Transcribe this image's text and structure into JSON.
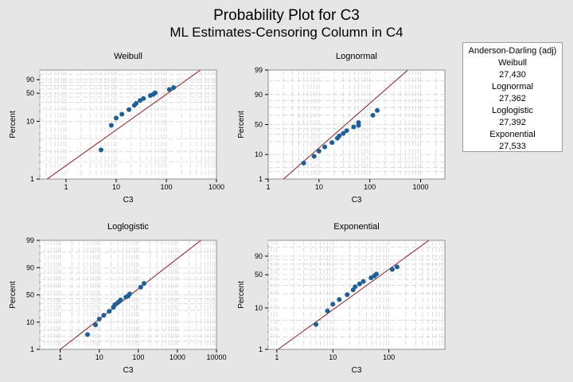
{
  "figure": {
    "title": "Probability Plot for C3",
    "subtitle": "ML Estimates-Censoring Column in C4"
  },
  "legend": {
    "header": "Anderson-Darling (adj)",
    "entries": [
      {
        "name": "Weibull",
        "value": "27,430"
      },
      {
        "name": "Lognormal",
        "value": "27,362"
      },
      {
        "name": "Loglogistic",
        "value": "27,392"
      },
      {
        "name": "Exponential",
        "value": "27,533"
      }
    ]
  },
  "colors": {
    "background": "#e6e6e6",
    "plot_area": "#ffffff",
    "points": "#1f5f99",
    "fit_line": "#8b1a1a",
    "grid": "#d4d4d4"
  },
  "chart_data": [
    {
      "type": "scatter",
      "title": "Weibull",
      "xlabel": "C3",
      "ylabel": "Percent",
      "xscale": "log",
      "xlim": [
        0.3,
        1000
      ],
      "x_ticks": [
        1,
        10,
        100,
        1000
      ],
      "x_tick_labels": [
        "1",
        "10",
        "100",
        "1000"
      ],
      "y_ticks": [
        1,
        10,
        50,
        90
      ],
      "y_tick_labels": [
        "1",
        "10",
        "50",
        "90"
      ],
      "ylim": [
        1,
        99
      ],
      "grid": true,
      "points": [
        {
          "x": 5,
          "y": 3.2
        },
        {
          "x": 8,
          "y": 8.5
        },
        {
          "x": 10,
          "y": 12
        },
        {
          "x": 13,
          "y": 15
        },
        {
          "x": 18,
          "y": 19.5
        },
        {
          "x": 23,
          "y": 25
        },
        {
          "x": 25,
          "y": 28
        },
        {
          "x": 30,
          "y": 33
        },
        {
          "x": 35,
          "y": 37
        },
        {
          "x": 48,
          "y": 44
        },
        {
          "x": 55,
          "y": 47
        },
        {
          "x": 60,
          "y": 51
        },
        {
          "x": 115,
          "y": 59
        },
        {
          "x": 140,
          "y": 64
        }
      ],
      "fit_line": {
        "x": [
          0.42,
          480
        ],
        "y": [
          1,
          99
        ]
      }
    },
    {
      "type": "scatter",
      "title": "Lognormal",
      "xlabel": "C3",
      "ylabel": "Percent",
      "xscale": "log",
      "xlim": [
        1,
        3000
      ],
      "x_ticks": [
        1,
        10,
        100,
        1000
      ],
      "x_tick_labels": [
        "1",
        "10",
        "100",
        "1000"
      ],
      "y_ticks": [
        1,
        10,
        50,
        90,
        99
      ],
      "y_tick_labels": [
        "1",
        "10",
        "50",
        "90",
        "99"
      ],
      "ylim": [
        1,
        99
      ],
      "grid": true,
      "points": [
        {
          "x": 5,
          "y": 4.5
        },
        {
          "x": 8,
          "y": 8.5
        },
        {
          "x": 10,
          "y": 12
        },
        {
          "x": 13,
          "y": 15
        },
        {
          "x": 18,
          "y": 19
        },
        {
          "x": 23,
          "y": 24
        },
        {
          "x": 25,
          "y": 27
        },
        {
          "x": 30,
          "y": 31
        },
        {
          "x": 35,
          "y": 36
        },
        {
          "x": 48,
          "y": 44
        },
        {
          "x": 60,
          "y": 48
        },
        {
          "x": 60,
          "y": 52
        },
        {
          "x": 115,
          "y": 60
        },
        {
          "x": 140,
          "y": 66
        }
      ],
      "fit_line": {
        "x": [
          2,
          560
        ],
        "y": [
          1,
          99
        ]
      }
    },
    {
      "type": "scatter",
      "title": "Loglogistic",
      "xlabel": "C3",
      "ylabel": "Percent",
      "xscale": "log",
      "xlim": [
        0.3,
        10000
      ],
      "x_ticks": [
        1,
        10,
        100,
        1000,
        10000
      ],
      "x_tick_labels": [
        "1",
        "10",
        "100",
        "1000",
        "10000"
      ],
      "y_ticks": [
        1,
        10,
        50,
        90,
        99
      ],
      "y_tick_labels": [
        "1",
        "10",
        "50",
        "90",
        "99"
      ],
      "ylim": [
        1,
        99
      ],
      "grid": true,
      "points": [
        {
          "x": 5,
          "y": 3.5
        },
        {
          "x": 8,
          "y": 8
        },
        {
          "x": 10,
          "y": 12
        },
        {
          "x": 13,
          "y": 15
        },
        {
          "x": 18,
          "y": 19
        },
        {
          "x": 23,
          "y": 24
        },
        {
          "x": 25,
          "y": 28
        },
        {
          "x": 30,
          "y": 32
        },
        {
          "x": 35,
          "y": 37
        },
        {
          "x": 48,
          "y": 44
        },
        {
          "x": 55,
          "y": 47
        },
        {
          "x": 60,
          "y": 51
        },
        {
          "x": 115,
          "y": 59
        },
        {
          "x": 140,
          "y": 64
        }
      ],
      "fit_line": {
        "x": [
          1,
          4000
        ],
        "y": [
          1,
          99
        ]
      }
    },
    {
      "type": "scatter",
      "title": "Exponential",
      "xlabel": "C3",
      "ylabel": "Percent",
      "xscale": "log",
      "xlim": [
        0.7,
        1000
      ],
      "x_ticks": [
        1,
        10,
        100
      ],
      "x_tick_labels": [
        "1",
        "10",
        "100"
      ],
      "y_ticks": [
        1,
        10,
        50,
        90
      ],
      "y_tick_labels": [
        "1",
        "10",
        "50",
        "90"
      ],
      "ylim": [
        1,
        99
      ],
      "grid": true,
      "points": [
        {
          "x": 5,
          "y": 4
        },
        {
          "x": 8,
          "y": 8.5
        },
        {
          "x": 10,
          "y": 12
        },
        {
          "x": 13,
          "y": 15
        },
        {
          "x": 18,
          "y": 19
        },
        {
          "x": 23,
          "y": 24
        },
        {
          "x": 25,
          "y": 28
        },
        {
          "x": 30,
          "y": 32
        },
        {
          "x": 35,
          "y": 36
        },
        {
          "x": 48,
          "y": 43
        },
        {
          "x": 55,
          "y": 47
        },
        {
          "x": 60,
          "y": 51
        },
        {
          "x": 115,
          "y": 59
        },
        {
          "x": 140,
          "y": 64
        }
      ],
      "fit_line": {
        "x": [
          1.05,
          520
        ],
        "y": [
          1,
          99
        ]
      }
    }
  ]
}
